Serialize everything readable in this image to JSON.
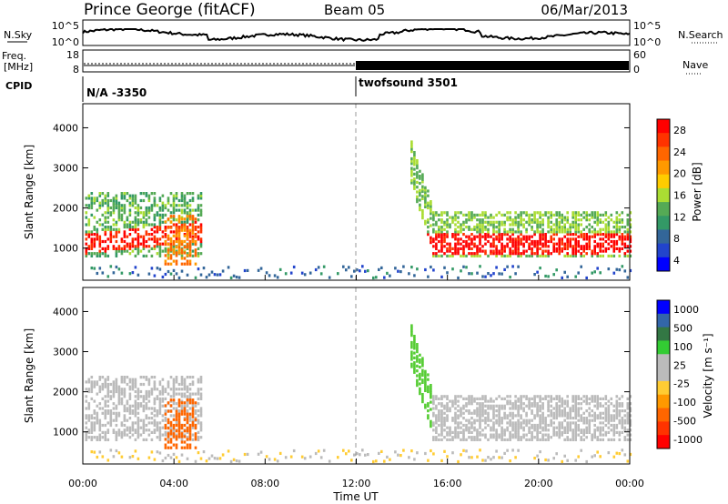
{
  "header": {
    "station": "Prince George (fitACF)",
    "beam": "Beam 05",
    "date": "06/Mar/2013"
  },
  "side_labels": {
    "nsky": "N.Sky",
    "nsearch": "N.Search",
    "freq_line1": "Freq.",
    "freq_line2": "[MHz]",
    "nave": "Nave",
    "cpid": "CPID"
  },
  "colors": {
    "power_scale": [
      "#0000ff",
      "#2244cc",
      "#336699",
      "#339966",
      "#55aa55",
      "#aadd33",
      "#ffcc00",
      "#ff9900",
      "#ff6600",
      "#ff3300",
      "#ff0000"
    ],
    "velocity_scale": [
      "#ff0000",
      "#ff3300",
      "#ff6600",
      "#ff9900",
      "#ffcc33",
      "#bbbbbb",
      "#bbbbbb",
      "#33cc33",
      "#337744",
      "#3366aa",
      "#0000ff"
    ],
    "ground_scatter": "#bbbbbb"
  },
  "chart_data": [
    {
      "type": "line",
      "panel": "noise",
      "left_ticks": [
        "10^5",
        "10^0"
      ],
      "right_ticks": [
        "10^5",
        "10^0"
      ]
    },
    {
      "type": "line",
      "panel": "frequency_nave",
      "left_ticks": [
        "18",
        "8"
      ],
      "right_ticks": [
        "60",
        "0"
      ]
    },
    {
      "type": "table",
      "panel": "cpid",
      "segments": [
        {
          "label": "N/A -3350",
          "start_hour": 0,
          "end_hour": 12
        },
        {
          "label": "twofsound 3501",
          "start_hour": 12,
          "end_hour": 24
        }
      ]
    },
    {
      "type": "heatmap",
      "panel": "power",
      "ylabel": "Slant Range [km]",
      "xlim": [
        0,
        24
      ],
      "ylim": [
        200,
        4600
      ],
      "yticks": [
        "4000",
        "3000",
        "2000",
        "1000"
      ],
      "colorbar_label": "Power [dB]",
      "colorbar_ticks": [
        "28",
        "24",
        "20",
        "16",
        "12",
        "8",
        "4"
      ]
    },
    {
      "type": "heatmap",
      "panel": "velocity",
      "ylabel": "Slant Range [km]",
      "xlabel": "Time UT",
      "xlim": [
        0,
        24
      ],
      "ylim": [
        200,
        4600
      ],
      "yticks": [
        "4000",
        "3000",
        "2000",
        "1000"
      ],
      "xticks": [
        "00:00",
        "04:00",
        "08:00",
        "12:00",
        "16:00",
        "20:00",
        "00:00"
      ],
      "colorbar_label": "Velocity [m s⁻¹]",
      "colorbar_ticks": [
        "1000",
        "500",
        "100",
        "25",
        "-25",
        "-100",
        "-500",
        "-1000"
      ]
    }
  ]
}
